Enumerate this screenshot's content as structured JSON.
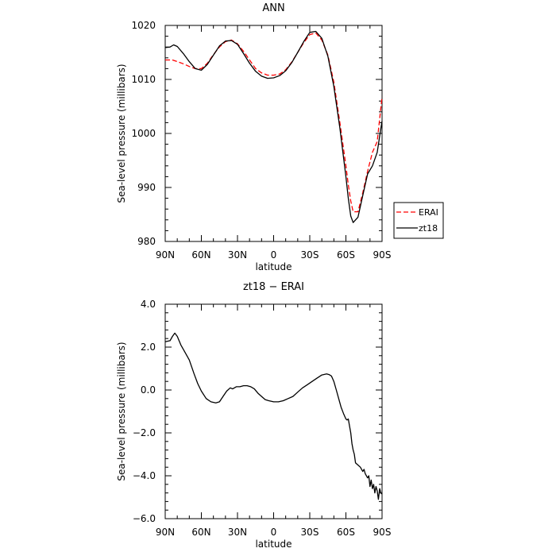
{
  "chart_data": [
    {
      "type": "line",
      "title": "ANN",
      "xlabel": "latitude",
      "ylabel": "Sea-level pressure (millibars)",
      "xlim": [
        90,
        -90
      ],
      "ylim": [
        980,
        1020
      ],
      "x_tick_values": [
        90,
        60,
        30,
        0,
        -30,
        -60,
        -90
      ],
      "x_tick_labels": [
        "90N",
        "60N",
        "30N",
        "0",
        "30S",
        "60S",
        "90S"
      ],
      "y_tick_values": [
        980,
        990,
        1000,
        1010,
        1020
      ],
      "y_tick_labels": [
        "980",
        "990",
        "1000",
        "1010",
        "1020"
      ],
      "grid": false,
      "legend_position": "outside-right",
      "series": [
        {
          "name": "ERAI",
          "color": "#ff0000",
          "dash": "dashed",
          "x": [
            90,
            84,
            80,
            75,
            70,
            65,
            60,
            55,
            50,
            45,
            40,
            35,
            30,
            25,
            20,
            15,
            10,
            5,
            0,
            -5,
            -10,
            -15,
            -20,
            -25,
            -30,
            -35,
            -40,
            -45,
            -50,
            -55,
            -60,
            -62,
            -64,
            -66,
            -70,
            -74,
            -78,
            -82,
            -86,
            -90
          ],
          "y": [
            1013.6,
            1013.6,
            1013.3,
            1012.9,
            1012.4,
            1012.0,
            1012.0,
            1013.0,
            1014.6,
            1016.0,
            1017.0,
            1017.3,
            1016.6,
            1015.2,
            1013.6,
            1012.0,
            1011.2,
            1010.8,
            1010.8,
            1011.0,
            1011.8,
            1013.2,
            1015.0,
            1016.8,
            1018.3,
            1018.6,
            1017.3,
            1014.5,
            1009.5,
            1002.0,
            994.0,
            990.5,
            987.5,
            985.5,
            985.5,
            989.0,
            993.0,
            996.5,
            998.5,
            1006.8
          ]
        },
        {
          "name": "zt18",
          "color": "#000000",
          "dash": "solid",
          "x": [
            90,
            86,
            83,
            80,
            75,
            70,
            65,
            60,
            55,
            50,
            45,
            40,
            35,
            30,
            25,
            20,
            15,
            10,
            5,
            0,
            -5,
            -10,
            -15,
            -20,
            -25,
            -30,
            -35,
            -40,
            -45,
            -50,
            -55,
            -60,
            -62,
            -64,
            -66,
            -70,
            -74,
            -78,
            -82,
            -86,
            -88,
            -90
          ],
          "y": [
            1015.9,
            1016.0,
            1016.4,
            1016.1,
            1014.8,
            1013.3,
            1012.0,
            1011.7,
            1012.8,
            1014.5,
            1016.2,
            1017.1,
            1017.2,
            1016.5,
            1014.8,
            1013.0,
            1011.5,
            1010.6,
            1010.2,
            1010.3,
            1010.7,
            1011.6,
            1013.1,
            1015.0,
            1017.0,
            1018.7,
            1018.9,
            1017.6,
            1014.3,
            1008.7,
            1001.0,
            992.0,
            988.0,
            984.7,
            983.5,
            984.5,
            988.5,
            992.5,
            994.0,
            996.5,
            999.5,
            1002.3
          ]
        }
      ]
    },
    {
      "type": "line",
      "title": "zt18 − ERAI",
      "xlabel": "latitude",
      "ylabel": "Sea-level pressure (millibars)",
      "xlim": [
        90,
        -90
      ],
      "ylim": [
        -6,
        4
      ],
      "x_tick_values": [
        90,
        60,
        30,
        0,
        -30,
        -60,
        -90
      ],
      "x_tick_labels": [
        "90N",
        "60N",
        "30N",
        "0",
        "30S",
        "60S",
        "90S"
      ],
      "y_tick_values": [
        -6,
        -4,
        -2,
        0,
        2,
        4
      ],
      "y_tick_labels": [
        "−6.0",
        "−4.0",
        "−2.0",
        "0.0",
        "2.0",
        "4.0"
      ],
      "grid": false,
      "series": [
        {
          "color": "#000000",
          "dash": "solid",
          "x": [
            90,
            86,
            84,
            82,
            80,
            77,
            74,
            70,
            66,
            63,
            60,
            56,
            52,
            48,
            45,
            42,
            39,
            36,
            34,
            31,
            28,
            25,
            22,
            19,
            16,
            13,
            10,
            7,
            4,
            0,
            -4,
            -8,
            -12,
            -16,
            -20,
            -24,
            -28,
            -32,
            -36,
            -40,
            -44,
            -46,
            -48,
            -50,
            -52,
            -54,
            -56,
            -58,
            -60,
            -61,
            -62,
            -64,
            -65,
            -66,
            -67,
            -68,
            -70,
            -72,
            -74,
            -75,
            -76,
            -78,
            -79,
            -80,
            -81,
            -82,
            -83,
            -84,
            -85,
            -86,
            -87,
            -88,
            -89,
            -90
          ],
          "y": [
            2.25,
            2.3,
            2.5,
            2.65,
            2.5,
            2.1,
            1.8,
            1.4,
            0.75,
            0.3,
            -0.05,
            -0.4,
            -0.55,
            -0.6,
            -0.55,
            -0.3,
            -0.05,
            0.1,
            0.05,
            0.15,
            0.15,
            0.2,
            0.2,
            0.15,
            0.05,
            -0.15,
            -0.3,
            -0.45,
            -0.5,
            -0.55,
            -0.55,
            -0.5,
            -0.4,
            -0.3,
            -0.1,
            0.1,
            0.25,
            0.4,
            0.55,
            0.7,
            0.75,
            0.72,
            0.65,
            0.4,
            0.0,
            -0.4,
            -0.8,
            -1.1,
            -1.35,
            -1.4,
            -1.35,
            -2.0,
            -2.5,
            -2.8,
            -3.0,
            -3.4,
            -3.5,
            -3.6,
            -3.8,
            -3.7,
            -3.9,
            -4.1,
            -4.0,
            -4.5,
            -4.2,
            -4.6,
            -4.4,
            -4.8,
            -4.5,
            -4.7,
            -5.1,
            -4.6,
            -4.8,
            -4.85
          ]
        }
      ]
    }
  ]
}
